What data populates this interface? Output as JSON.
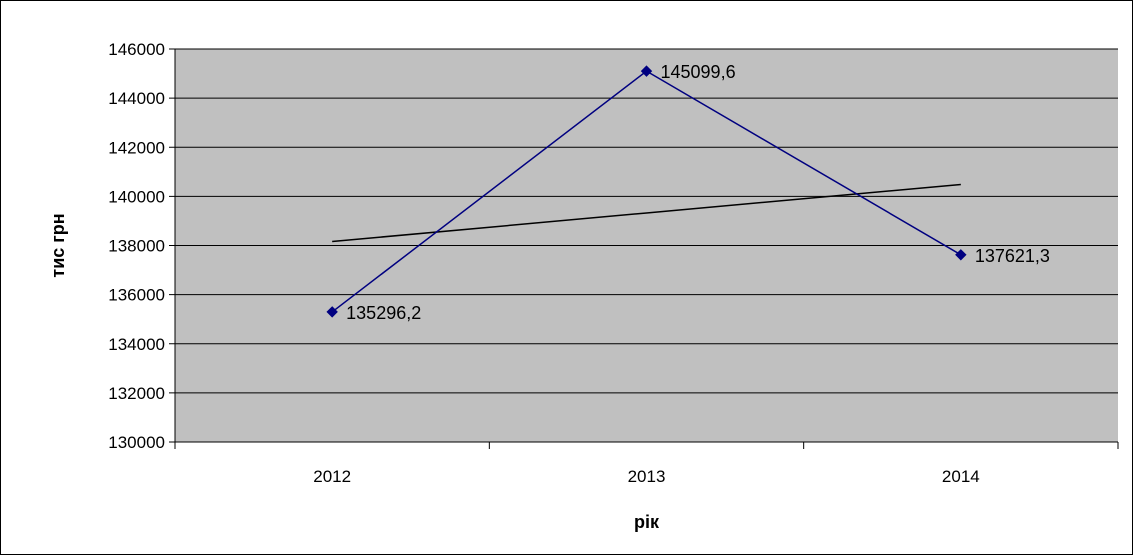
{
  "chart_data": {
    "type": "line",
    "categories": [
      "2012",
      "2013",
      "2014"
    ],
    "series": [
      {
        "values": [
          135296.2,
          145099.6,
          137621.3
        ],
        "data_labels": [
          "135296,2",
          "145099,6",
          "137621,3"
        ],
        "color": "#000080",
        "marker": "diamond"
      }
    ],
    "trendline": {
      "type": "linear",
      "values": [
        138163.0,
        139324.3,
        140485.6
      ],
      "color": "#000000"
    },
    "ylabel": "тис грн",
    "xlabel": "рік",
    "ylim": [
      130000,
      146000
    ],
    "y_ticks": [
      130000,
      132000,
      134000,
      136000,
      138000,
      140000,
      142000,
      144000,
      146000
    ],
    "grid": true,
    "legend": "none",
    "plot_background": "#c0c0c0"
  }
}
